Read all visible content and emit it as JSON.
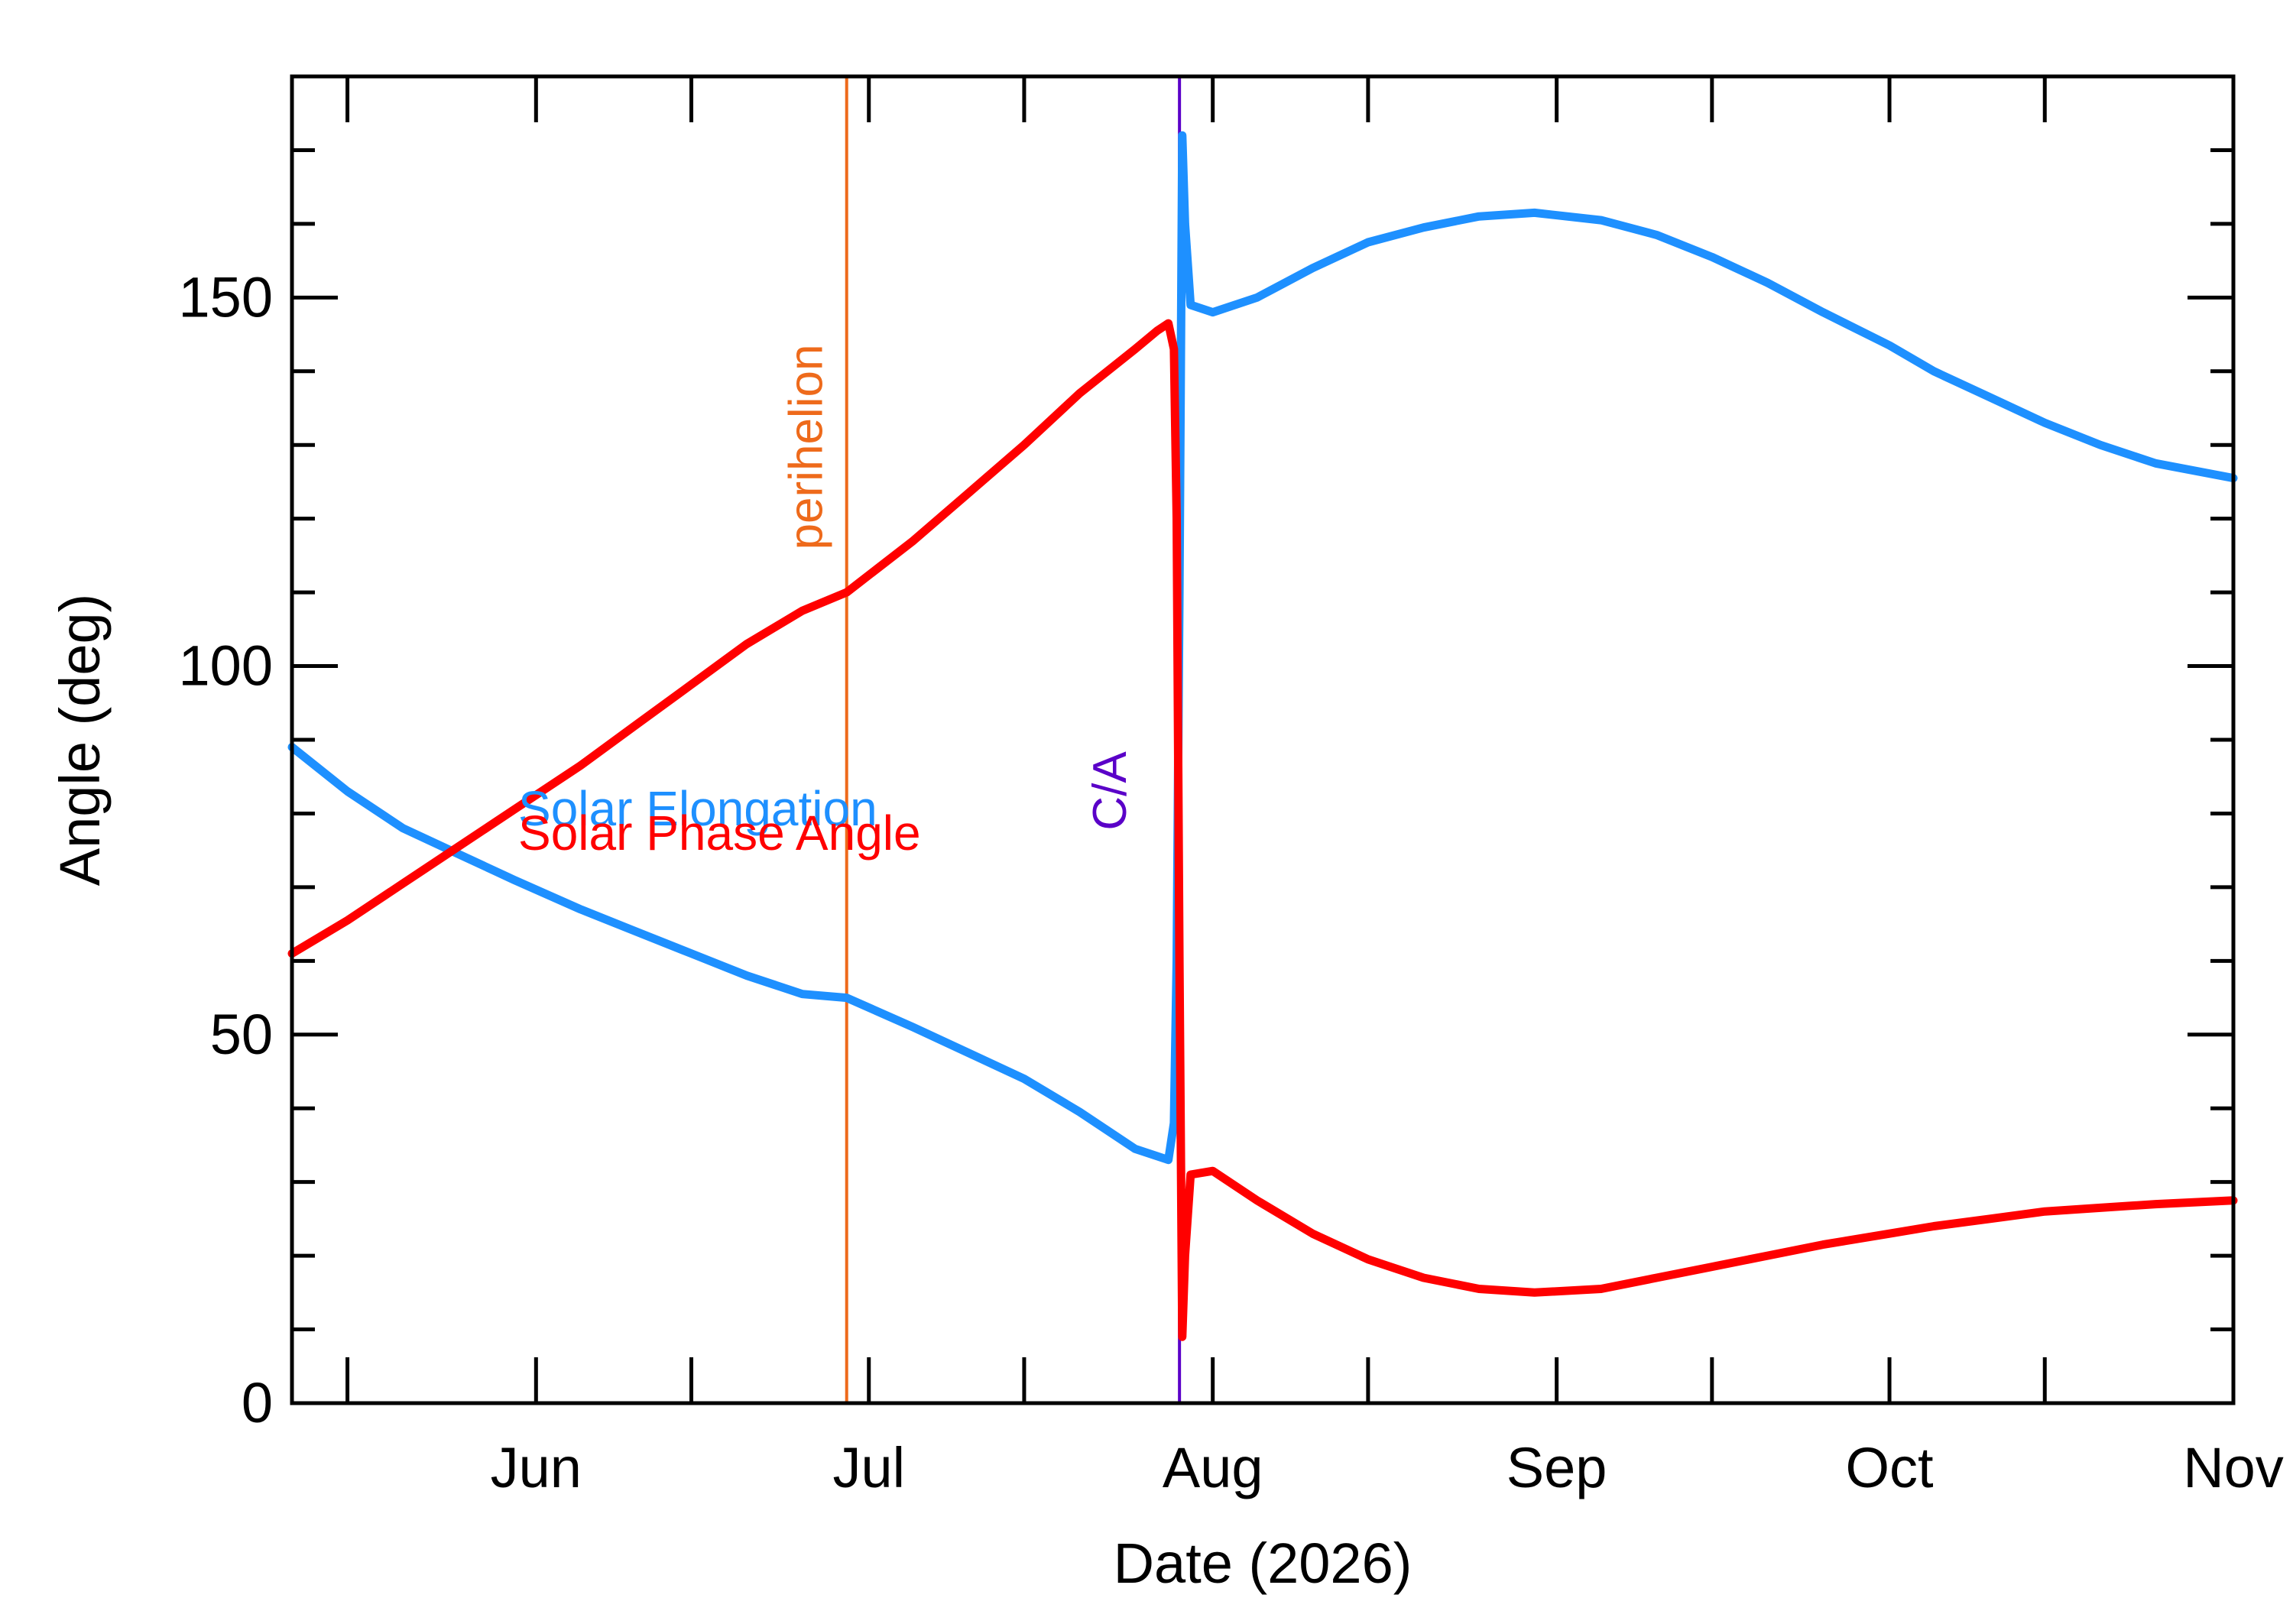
{
  "chart_data": {
    "type": "line",
    "xlabel": "Date (2026)",
    "ylabel": "Angle (deg)",
    "xlim": [
      "2026-05-10",
      "2026-11-01"
    ],
    "ylim": [
      0,
      180
    ],
    "x_tick_labels": [
      {
        "date": "2026-06-01",
        "label": "Jun"
      },
      {
        "date": "2026-07-01",
        "label": "Jul"
      },
      {
        "date": "2026-08-01",
        "label": "Aug"
      },
      {
        "date": "2026-09-01",
        "label": "Sep"
      },
      {
        "date": "2026-10-01",
        "label": "Oct"
      },
      {
        "date": "2026-11-01",
        "label": "Nov"
      }
    ],
    "y_tick_labels": [
      {
        "value": 0,
        "label": "0"
      },
      {
        "value": 50,
        "label": "50"
      },
      {
        "value": 100,
        "label": "100"
      },
      {
        "value": 150,
        "label": "150"
      }
    ],
    "annotations": [
      {
        "name": "perihelion",
        "label": "perihelion",
        "date": "2026-06-29",
        "color": "#ee6a1b"
      },
      {
        "name": "closest-approach",
        "label": "C/A",
        "date": "2026-07-29",
        "color": "#5a00c8"
      }
    ],
    "series": [
      {
        "name": "Solar Elongation",
        "color": "#1e90ff",
        "points": [
          [
            "2026-05-10",
            89
          ],
          [
            "2026-05-15",
            83
          ],
          [
            "2026-05-20",
            78
          ],
          [
            "2026-05-25",
            74.5
          ],
          [
            "2026-05-30",
            71
          ],
          [
            "2026-06-05",
            67
          ],
          [
            "2026-06-10",
            64
          ],
          [
            "2026-06-15",
            61
          ],
          [
            "2026-06-20",
            58
          ],
          [
            "2026-06-25",
            55.5
          ],
          [
            "2026-06-29",
            55
          ],
          [
            "2026-07-05",
            51
          ],
          [
            "2026-07-10",
            47.5
          ],
          [
            "2026-07-15",
            44
          ],
          [
            "2026-07-20",
            39.5
          ],
          [
            "2026-07-25",
            34.5
          ],
          [
            "2026-07-28",
            33
          ],
          [
            "2026-07-28 12:00",
            38
          ],
          [
            "2026-07-28 18:00",
            60
          ],
          [
            "2026-07-29 00:00",
            110
          ],
          [
            "2026-07-29 06:00",
            172
          ],
          [
            "2026-07-29 12:00",
            160
          ],
          [
            "2026-07-30",
            149
          ],
          [
            "2026-08-01",
            148
          ],
          [
            "2026-08-05",
            150
          ],
          [
            "2026-08-10",
            154
          ],
          [
            "2026-08-15",
            157.5
          ],
          [
            "2026-08-20",
            159.5
          ],
          [
            "2026-08-25",
            161
          ],
          [
            "2026-08-30",
            161.5
          ],
          [
            "2026-09-05",
            160.5
          ],
          [
            "2026-09-10",
            158.5
          ],
          [
            "2026-09-15",
            155.5
          ],
          [
            "2026-09-20",
            152
          ],
          [
            "2026-09-25",
            148
          ],
          [
            "2026-10-01",
            143.5
          ],
          [
            "2026-10-05",
            140
          ],
          [
            "2026-10-10",
            136.5
          ],
          [
            "2026-10-15",
            133
          ],
          [
            "2026-10-20",
            130
          ],
          [
            "2026-10-25",
            127.5
          ],
          [
            "2026-11-01",
            125.5
          ]
        ]
      },
      {
        "name": "Solar Phase Angle",
        "color": "#ff0000",
        "points": [
          [
            "2026-05-10",
            61
          ],
          [
            "2026-05-15",
            65.5
          ],
          [
            "2026-05-20",
            70.5
          ],
          [
            "2026-05-25",
            75.5
          ],
          [
            "2026-05-30",
            80.5
          ],
          [
            "2026-06-05",
            86.5
          ],
          [
            "2026-06-10",
            92
          ],
          [
            "2026-06-15",
            97.5
          ],
          [
            "2026-06-20",
            103
          ],
          [
            "2026-06-25",
            107.5
          ],
          [
            "2026-06-29",
            110
          ],
          [
            "2026-07-05",
            117
          ],
          [
            "2026-07-10",
            123.5
          ],
          [
            "2026-07-15",
            130
          ],
          [
            "2026-07-20",
            137
          ],
          [
            "2026-07-25",
            143
          ],
          [
            "2026-07-27",
            145.5
          ],
          [
            "2026-07-28",
            146.5
          ],
          [
            "2026-07-28 12:00",
            143
          ],
          [
            "2026-07-28 18:00",
            120
          ],
          [
            "2026-07-29 00:00",
            60
          ],
          [
            "2026-07-29 06:00",
            9
          ],
          [
            "2026-07-29 12:00",
            20
          ],
          [
            "2026-07-30",
            31
          ],
          [
            "2026-08-01",
            31.5
          ],
          [
            "2026-08-05",
            27.5
          ],
          [
            "2026-08-10",
            23
          ],
          [
            "2026-08-15",
            19.5
          ],
          [
            "2026-08-20",
            17
          ],
          [
            "2026-08-25",
            15.5
          ],
          [
            "2026-08-30",
            15
          ],
          [
            "2026-09-05",
            15.5
          ],
          [
            "2026-09-10",
            17
          ],
          [
            "2026-09-15",
            18.5
          ],
          [
            "2026-09-20",
            20
          ],
          [
            "2026-09-25",
            21.5
          ],
          [
            "2026-10-01",
            23
          ],
          [
            "2026-10-05",
            24
          ],
          [
            "2026-10-10",
            25
          ],
          [
            "2026-10-15",
            26
          ],
          [
            "2026-10-20",
            26.5
          ],
          [
            "2026-10-25",
            27
          ],
          [
            "2026-11-01",
            27.5
          ]
        ]
      }
    ]
  }
}
